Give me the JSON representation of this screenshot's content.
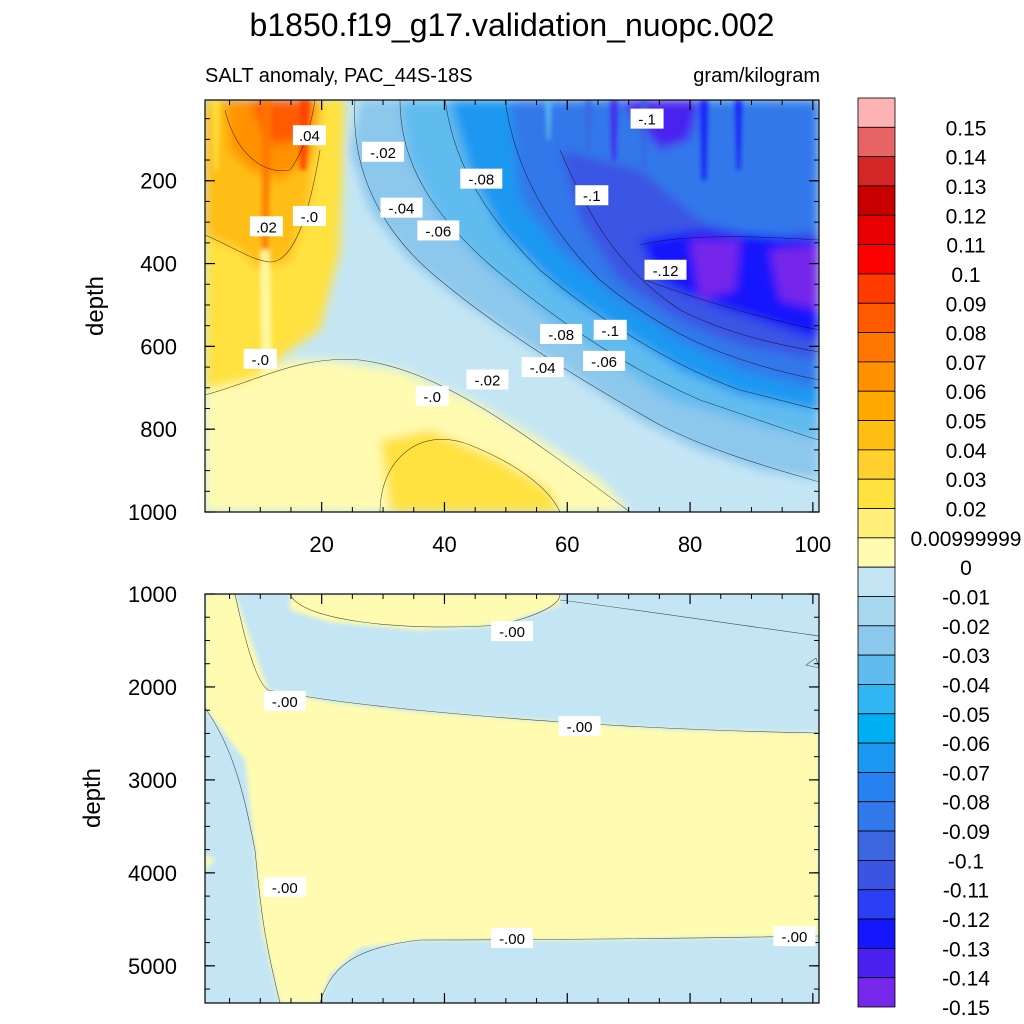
{
  "figure": {
    "title": "b1850.f19_g17.validation_nuopc.002",
    "subtitle_left": "SALT anomaly, PAC_44S-18S",
    "subtitle_right": "gram/kilogram"
  },
  "colorbar": {
    "labels": [
      "0.15",
      "0.14",
      "0.13",
      "0.12",
      "0.11",
      "0.1",
      "0.09",
      "0.08",
      "0.07",
      "0.06",
      "0.05",
      "0.04",
      "0.03",
      "0.02",
      "0.00999999",
      "0",
      "-0.01",
      "-0.02",
      "-0.03",
      "-0.04",
      "-0.05",
      "-0.06",
      "-0.07",
      "-0.08",
      "-0.09",
      "-0.1",
      "-0.11",
      "-0.12",
      "-0.13",
      "-0.14",
      "-0.15"
    ],
    "colors": [
      "#fdb3b3",
      "#e86464",
      "#d32626",
      "#c80000",
      "#e80000",
      "#ff0000",
      "#ff3b00",
      "#ff5a00",
      "#ff7700",
      "#ff9200",
      "#ffa800",
      "#ffbe14",
      "#ffd02e",
      "#ffe240",
      "#fff07a",
      "#fffbb0",
      "#c4e6f4",
      "#a8d8ef",
      "#8cc7ec",
      "#60bbef",
      "#2fb6f3",
      "#00aef2",
      "#1b98f1",
      "#2582f0",
      "#3178ea",
      "#3b66e0",
      "#3a55e4",
      "#2b3ff5",
      "#1616fc",
      "#4a20f0",
      "#7627ea"
    ]
  },
  "chart_data": [
    {
      "type": "heatmap",
      "panel": "upper",
      "xlabel": "",
      "ylabel": "depth",
      "xlim": [
        1,
        101
      ],
      "ylim": [
        1000,
        5
      ],
      "xticks": [
        "20",
        "40",
        "60",
        "80",
        "100"
      ],
      "yticks": [
        "200",
        "400",
        "600",
        "800",
        "1000"
      ],
      "contour_labels": [
        {
          "text": ".04",
          "x": 18,
          "y": 90
        },
        {
          "text": "-.02",
          "x": 30,
          "y": 130
        },
        {
          "text": "-.1",
          "x": 73,
          "y": 50
        },
        {
          "text": "-.08",
          "x": 46,
          "y": 195
        },
        {
          "text": "-.1",
          "x": 64,
          "y": 235
        },
        {
          "text": ".02",
          "x": 11,
          "y": 310
        },
        {
          "text": "-.0",
          "x": 18,
          "y": 285
        },
        {
          "text": "-.04",
          "x": 33,
          "y": 265
        },
        {
          "text": "-.06",
          "x": 39,
          "y": 320
        },
        {
          "text": "-.12",
          "x": 76,
          "y": 415
        },
        {
          "text": "-.08",
          "x": 59,
          "y": 570
        },
        {
          "text": "-.1",
          "x": 67,
          "y": 560
        },
        {
          "text": "-.0",
          "x": 10,
          "y": 630
        },
        {
          "text": "-.0",
          "x": 38,
          "y": 720
        },
        {
          "text": "-.02",
          "x": 47,
          "y": 680
        },
        {
          "text": "-.04",
          "x": 56,
          "y": 650
        },
        {
          "text": "-.06",
          "x": 66,
          "y": 635
        }
      ]
    },
    {
      "type": "heatmap",
      "panel": "lower",
      "xlabel": "",
      "ylabel": "depth",
      "xlim": [
        1,
        101
      ],
      "ylim": [
        5400,
        1000
      ],
      "yticks": [
        "1000",
        "2000",
        "3000",
        "4000",
        "5000"
      ],
      "contour_labels": [
        {
          "text": "-.00",
          "x": 51,
          "y": 1400
        },
        {
          "text": "-.00",
          "x": 14,
          "y": 2150
        },
        {
          "text": "-.00",
          "x": 62,
          "y": 2420
        },
        {
          "text": "-.00",
          "x": 14,
          "y": 4150
        },
        {
          "text": "-.00",
          "x": 51,
          "y": 4700
        },
        {
          "text": "-.00",
          "x": 97,
          "y": 4680
        }
      ]
    }
  ]
}
